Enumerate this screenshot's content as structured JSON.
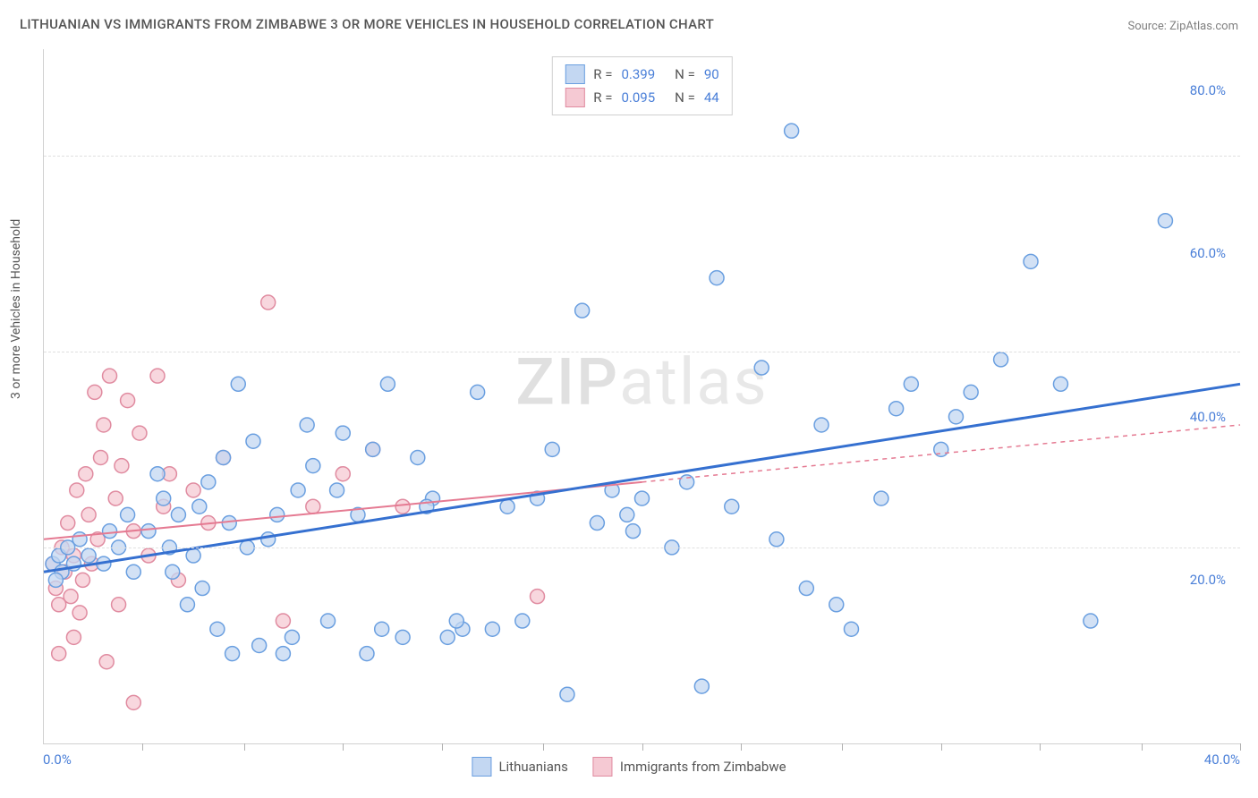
{
  "title": "LITHUANIAN VS IMMIGRANTS FROM ZIMBABWE 3 OR MORE VEHICLES IN HOUSEHOLD CORRELATION CHART",
  "source": "Source: ZipAtlas.com",
  "watermark": {
    "pre": "ZIP",
    "post": "atlas"
  },
  "y_axis_label": "3 or more Vehicles in Household",
  "chart": {
    "xlim": [
      0,
      40
    ],
    "ylim": [
      0,
      85
    ],
    "x_ticks_minor": [
      3.3,
      6.7,
      10,
      13.3,
      16.7,
      20,
      23.3,
      26.7,
      30,
      33.3,
      36.7,
      40
    ],
    "x_tick_labels": [
      {
        "pos": 0,
        "label": "0.0%"
      },
      {
        "pos": 40,
        "label": "40.0%"
      }
    ],
    "y_tick_labels": [
      {
        "pos": 20,
        "label": "20.0%"
      },
      {
        "pos": 40,
        "label": "40.0%"
      },
      {
        "pos": 60,
        "label": "60.0%"
      },
      {
        "pos": 80,
        "label": "80.0%"
      }
    ],
    "y_gridlines": [
      24,
      48,
      72
    ],
    "background_color": "#ffffff",
    "grid_color": "#e0e0e0",
    "series": [
      {
        "name": "Lithuanians",
        "fill": "#c3d7f2",
        "stroke": "#6a9fe0",
        "line_color": "#3570d0",
        "line_style": "solid",
        "line_width": 3,
        "r_label": "R =",
        "r_value": "0.399",
        "n_label": "N =",
        "n_value": "90",
        "regression": {
          "x1": 0,
          "y1": 21,
          "x2": 40,
          "y2": 44
        },
        "points": [
          [
            0.3,
            22
          ],
          [
            0.5,
            23
          ],
          [
            0.6,
            21
          ],
          [
            0.8,
            24
          ],
          [
            1.0,
            22
          ],
          [
            1.2,
            25
          ],
          [
            1.5,
            23
          ],
          [
            0.4,
            20
          ],
          [
            2.0,
            22
          ],
          [
            2.5,
            24
          ],
          [
            3.0,
            21
          ],
          [
            2.8,
            28
          ],
          [
            3.5,
            26
          ],
          [
            4.0,
            30
          ],
          [
            4.2,
            24
          ],
          [
            4.5,
            28
          ],
          [
            5.0,
            23
          ],
          [
            5.2,
            29
          ],
          [
            5.5,
            32
          ],
          [
            6.0,
            35
          ],
          [
            6.2,
            27
          ],
          [
            6.5,
            44
          ],
          [
            7.0,
            37
          ],
          [
            7.5,
            25
          ],
          [
            5.8,
            14
          ],
          [
            6.3,
            11
          ],
          [
            7.2,
            12
          ],
          [
            8.0,
            11
          ],
          [
            8.5,
            31
          ],
          [
            8.8,
            39
          ],
          [
            9.0,
            34
          ],
          [
            4.8,
            17
          ],
          [
            9.5,
            15
          ],
          [
            10.0,
            38
          ],
          [
            10.5,
            28
          ],
          [
            10.8,
            11
          ],
          [
            11.0,
            36
          ],
          [
            11.5,
            44
          ],
          [
            12.0,
            13
          ],
          [
            12.5,
            35
          ],
          [
            13.0,
            30
          ],
          [
            13.5,
            13
          ],
          [
            14.0,
            14
          ],
          [
            14.5,
            43
          ],
          [
            15.0,
            14
          ],
          [
            15.5,
            29
          ],
          [
            16.0,
            15
          ],
          [
            16.5,
            30
          ],
          [
            17.0,
            36
          ],
          [
            17.5,
            6
          ],
          [
            18.0,
            53
          ],
          [
            18.5,
            27
          ],
          [
            19.0,
            31
          ],
          [
            19.5,
            28
          ],
          [
            20.0,
            30
          ],
          [
            21.0,
            24
          ],
          [
            21.5,
            32
          ],
          [
            22.0,
            7
          ],
          [
            22.5,
            57
          ],
          [
            23.0,
            29
          ],
          [
            8.3,
            13
          ],
          [
            24.0,
            46
          ],
          [
            25.0,
            75
          ],
          [
            25.5,
            19
          ],
          [
            26.0,
            39
          ],
          [
            26.5,
            17
          ],
          [
            27.0,
            14
          ],
          [
            28.0,
            30
          ],
          [
            29.0,
            44
          ],
          [
            30.0,
            36
          ],
          [
            31.0,
            43
          ],
          [
            32.0,
            47
          ],
          [
            33.0,
            59
          ],
          [
            34.0,
            44
          ],
          [
            35.0,
            15
          ],
          [
            37.5,
            64
          ],
          [
            3.8,
            33
          ],
          [
            5.3,
            19
          ],
          [
            7.8,
            28
          ],
          [
            9.8,
            31
          ],
          [
            2.2,
            26
          ],
          [
            12.8,
            29
          ],
          [
            13.8,
            15
          ],
          [
            4.3,
            21
          ],
          [
            6.8,
            24
          ],
          [
            11.3,
            14
          ],
          [
            19.7,
            26
          ],
          [
            24.5,
            25
          ],
          [
            28.5,
            41
          ],
          [
            30.5,
            40
          ]
        ]
      },
      {
        "name": "Immigrants from Zimbabwe",
        "fill": "#f5c9d3",
        "stroke": "#e08ba0",
        "line_color": "#e57a92",
        "line_style_solid_to": 20,
        "line_style": "dashed-after",
        "line_width": 2,
        "r_label": "R =",
        "r_value": "0.095",
        "n_label": "N =",
        "n_value": "44",
        "regression": {
          "x1": 0,
          "y1": 25,
          "x2": 40,
          "y2": 39
        },
        "points": [
          [
            0.3,
            22
          ],
          [
            0.4,
            19
          ],
          [
            0.5,
            17
          ],
          [
            0.6,
            24
          ],
          [
            0.7,
            21
          ],
          [
            0.8,
            27
          ],
          [
            0.9,
            18
          ],
          [
            1.0,
            23
          ],
          [
            1.1,
            31
          ],
          [
            1.2,
            16
          ],
          [
            1.3,
            20
          ],
          [
            1.4,
            33
          ],
          [
            1.5,
            28
          ],
          [
            1.6,
            22
          ],
          [
            1.7,
            43
          ],
          [
            1.8,
            25
          ],
          [
            1.9,
            35
          ],
          [
            2.0,
            39
          ],
          [
            0.5,
            11
          ],
          [
            2.2,
            45
          ],
          [
            2.4,
            30
          ],
          [
            2.5,
            17
          ],
          [
            2.6,
            34
          ],
          [
            2.8,
            42
          ],
          [
            3.0,
            26
          ],
          [
            3.2,
            38
          ],
          [
            3.5,
            23
          ],
          [
            3.8,
            45
          ],
          [
            4.0,
            29
          ],
          [
            4.2,
            33
          ],
          [
            4.5,
            20
          ],
          [
            5.0,
            31
          ],
          [
            5.5,
            27
          ],
          [
            6.0,
            35
          ],
          [
            3.0,
            5
          ],
          [
            7.5,
            54
          ],
          [
            8.0,
            15
          ],
          [
            9.0,
            29
          ],
          [
            10.0,
            33
          ],
          [
            11.0,
            36
          ],
          [
            12.0,
            29
          ],
          [
            16.5,
            18
          ],
          [
            2.1,
            10
          ],
          [
            1.0,
            13
          ]
        ]
      }
    ]
  }
}
